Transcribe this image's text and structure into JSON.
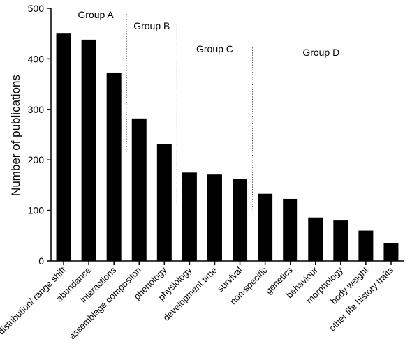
{
  "chart_data": {
    "type": "bar",
    "categories": [
      "distribution/ range shift",
      "abundance",
      "interactions",
      "assemblage compositon",
      "phenology",
      "physiology",
      "development time",
      "survival",
      "non-specific",
      "genetics",
      "behaviour",
      "morphology",
      "body weight",
      "other life history traits"
    ],
    "values": [
      450,
      438,
      373,
      282,
      231,
      175,
      171,
      162,
      133,
      123,
      86,
      80,
      60,
      35
    ],
    "title": "",
    "xlabel": "",
    "ylabel": "Number of publications",
    "ylim": [
      0,
      500
    ],
    "yticks": [
      "0",
      "100",
      "200",
      "300",
      "400",
      "500"
    ],
    "grid": false,
    "bar_color": "#000000",
    "groups": [
      {
        "label": "Group A",
        "start": 0,
        "end": 2
      },
      {
        "label": "Group B",
        "start": 3,
        "end": 4
      },
      {
        "label": "Group C",
        "start": 5,
        "end": 7
      },
      {
        "label": "Group D",
        "start": 8,
        "end": 13
      }
    ]
  }
}
